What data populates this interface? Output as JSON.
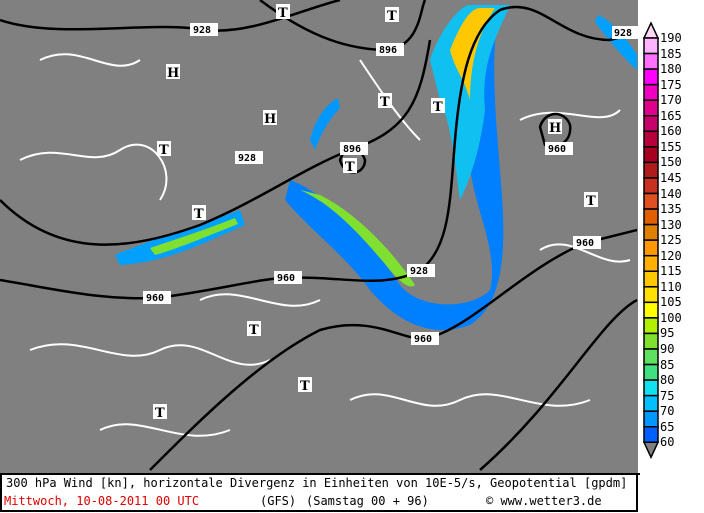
{
  "footer": {
    "title": "300 hPa Wind [kn], horizontale Divergenz in Einheiten von 10E-5/s, Geopotential [gpdm]",
    "date": "Mittwoch, 10-08-2011  00 UTC",
    "model": "(GFS)",
    "forecast": "(Samstag 00 + 96)",
    "copyright": "© www.wetter3.de"
  },
  "legend": {
    "labels": [
      "190",
      "185",
      "180",
      "175",
      "170",
      "165",
      "160",
      "155",
      "150",
      "145",
      "140",
      "135",
      "130",
      "125",
      "120",
      "115",
      "110",
      "105",
      "100",
      "95",
      "90",
      "85",
      "80",
      "75",
      "70",
      "65",
      "60"
    ],
    "colors": [
      "#ffb4ff",
      "#ff70ff",
      "#ff00ff",
      "#f000c0",
      "#e0008c",
      "#c8006c",
      "#b8003c",
      "#a80020",
      "#b01c1c",
      "#c83020",
      "#e05020",
      "#e06000",
      "#e08000",
      "#ff9800",
      "#ffb000",
      "#ffc800",
      "#ffe000",
      "#ffff00",
      "#b0f000",
      "#80e030",
      "#60e060",
      "#40e080",
      "#10e0f0",
      "#00c0ff",
      "#0098ff",
      "#0060ff"
    ],
    "top_color": "#ffd8f8",
    "bottom_color": "#808080"
  },
  "map": {
    "background": "#808080",
    "contour_labels": [
      "928",
      "896",
      "928",
      "896",
      "928",
      "960",
      "960",
      "928",
      "960",
      "960",
      "960"
    ],
    "pressure_markers": [
      "T",
      "T",
      "H",
      "H",
      "T",
      "T",
      "H",
      "T",
      "T",
      "T",
      "T",
      "T",
      "T",
      "T"
    ]
  }
}
